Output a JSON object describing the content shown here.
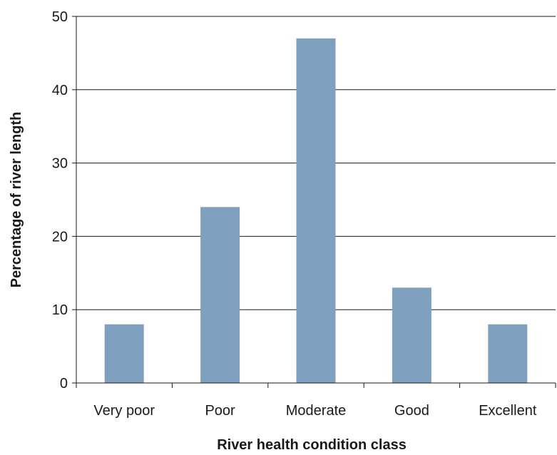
{
  "chart_data": {
    "type": "bar",
    "categories": [
      "Very poor",
      "Poor",
      "Moderate",
      "Good",
      "Excellent"
    ],
    "values": [
      8,
      24,
      47,
      13,
      8
    ],
    "xlabel": "River health condition class",
    "ylabel": "Percentage of river length",
    "ylim": [
      0,
      50
    ],
    "yticks": [
      "0",
      "10",
      "20",
      "30",
      "40",
      "50"
    ],
    "grid": true,
    "bar_color": "#7fa1bf",
    "grid_color": "#1a1a1a"
  }
}
